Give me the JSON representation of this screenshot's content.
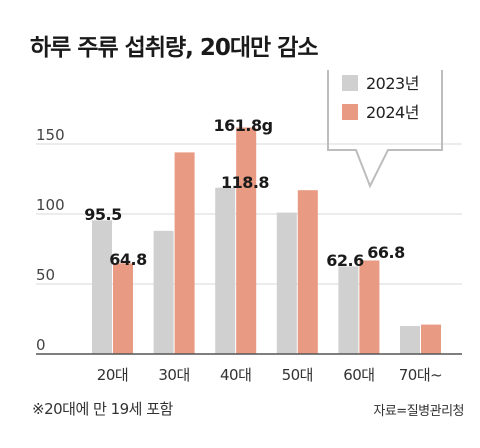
{
  "title": "하루 주류 섭취량, 20대만 감소",
  "note": "※20대에 만 19세 포함",
  "source": "자료=질병관리청",
  "colors": {
    "s2023": "#d0d0d0",
    "s2024": "#e89a82",
    "axis": "#555555",
    "grid": "#d8d8d8"
  },
  "chart_data": {
    "type": "bar",
    "categories": [
      "20대",
      "30대",
      "40대",
      "50대",
      "60대",
      "70대~"
    ],
    "series": [
      {
        "name": "2023년",
        "values": [
          95.5,
          88,
          118.8,
          101,
          62.6,
          20
        ],
        "labels": [
          "95.5",
          "",
          "118.8",
          "",
          "62.6",
          ""
        ]
      },
      {
        "name": "2024년",
        "values": [
          64.8,
          144,
          161.8,
          117,
          66.8,
          21
        ],
        "labels": [
          "64.8",
          "",
          "161.8g",
          "",
          "66.8",
          ""
        ]
      }
    ],
    "yticks": [
      0,
      50,
      100,
      150
    ],
    "ylim": [
      0,
      160
    ],
    "legend_position": "top-right"
  }
}
